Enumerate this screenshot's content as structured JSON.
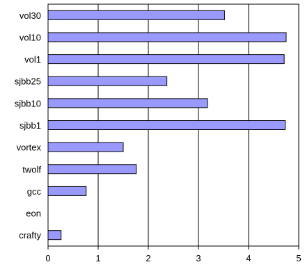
{
  "chart_data": {
    "type": "bar",
    "orientation": "horizontal",
    "categories": [
      "vol30",
      "vol10",
      "vol1",
      "sjbb25",
      "sjbb10",
      "sjbb1",
      "vortex",
      "twolf",
      "gcc",
      "eon",
      "crafty"
    ],
    "values": [
      3.52,
      4.75,
      4.71,
      2.37,
      3.18,
      4.73,
      1.5,
      1.76,
      0.76,
      0,
      0.26
    ],
    "xlim": [
      0,
      5
    ],
    "xticks": [
      "0",
      "1",
      "2",
      "3",
      "4",
      "5"
    ],
    "grid": true,
    "bar_color": "#9999ff",
    "title": "",
    "xlabel": "",
    "ylabel": ""
  }
}
